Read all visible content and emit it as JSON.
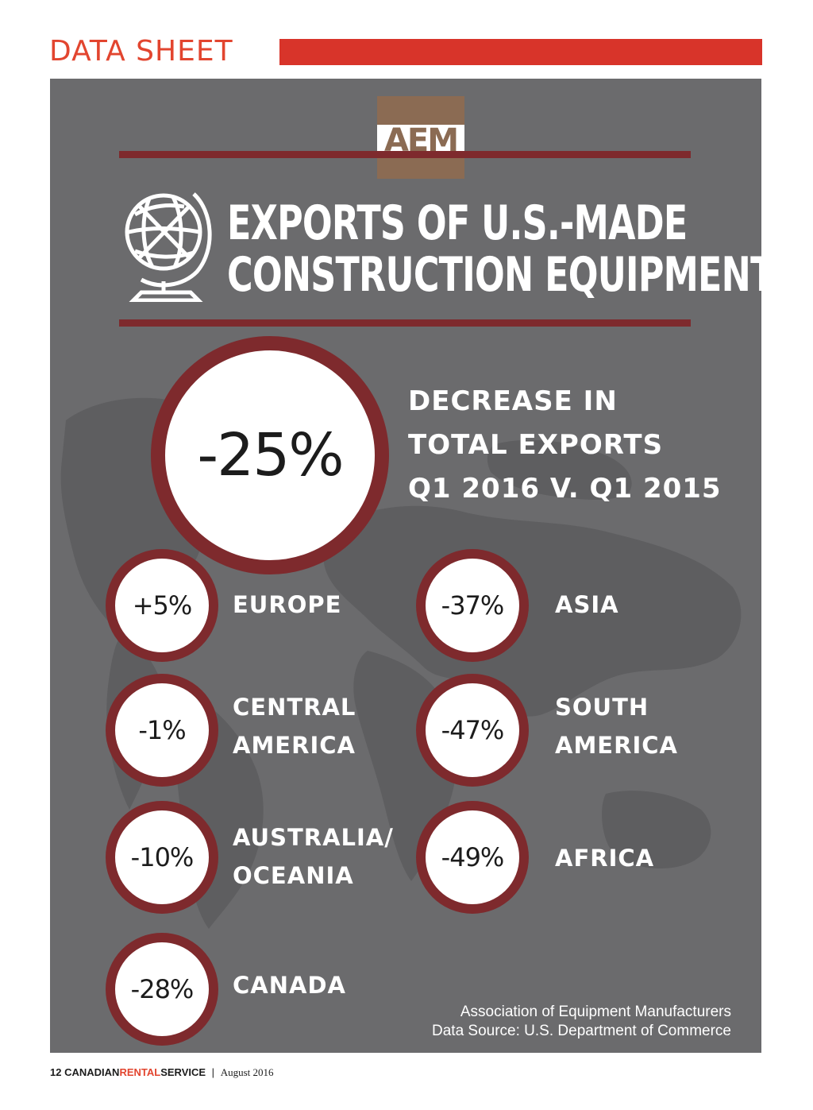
{
  "header": {
    "section_label": "DATA SHEET"
  },
  "logo": {
    "text": "AEM"
  },
  "title": {
    "line1": "EXPORTS OF U.S.-MADE",
    "line2": "CONSTRUCTION EQUIPMENT"
  },
  "headline_stat": {
    "value": "-25%",
    "label_lines": [
      "DECREASE IN",
      "TOTAL EXPORTS",
      "Q1 2016 V. Q1 2015"
    ]
  },
  "regions": [
    {
      "value": "+5%",
      "label_lines": [
        "EUROPE"
      ]
    },
    {
      "value": "-37%",
      "label_lines": [
        "ASIA"
      ]
    },
    {
      "value": "-1%",
      "label_lines": [
        "CENTRAL",
        "AMERICA"
      ]
    },
    {
      "value": "-47%",
      "label_lines": [
        "SOUTH",
        "AMERICA"
      ]
    },
    {
      "value": "-10%",
      "label_lines": [
        "AUSTRALIA/",
        "OCEANIA"
      ]
    },
    {
      "value": "-49%",
      "label_lines": [
        "AFRICA"
      ]
    },
    {
      "value": "-28%",
      "label_lines": [
        "CANADA"
      ]
    }
  ],
  "source": {
    "line1": "Association of Equipment Manufacturers",
    "line2": "Data Source: U.S. Department of Commerce"
  },
  "footer": {
    "page_number": "12",
    "publication_part1": "CANADIAN",
    "publication_part2": "RENTAL",
    "publication_part3": "SERVICE",
    "separator": "|",
    "date": "August 2016"
  },
  "colors": {
    "accent_red": "#d8342a",
    "ring_maroon": "#7e2a2d",
    "panel_gray": "#6b6b6d",
    "logo_brown": "#8b6b53"
  },
  "icons": [
    "globe-icon",
    "world-map-background"
  ]
}
